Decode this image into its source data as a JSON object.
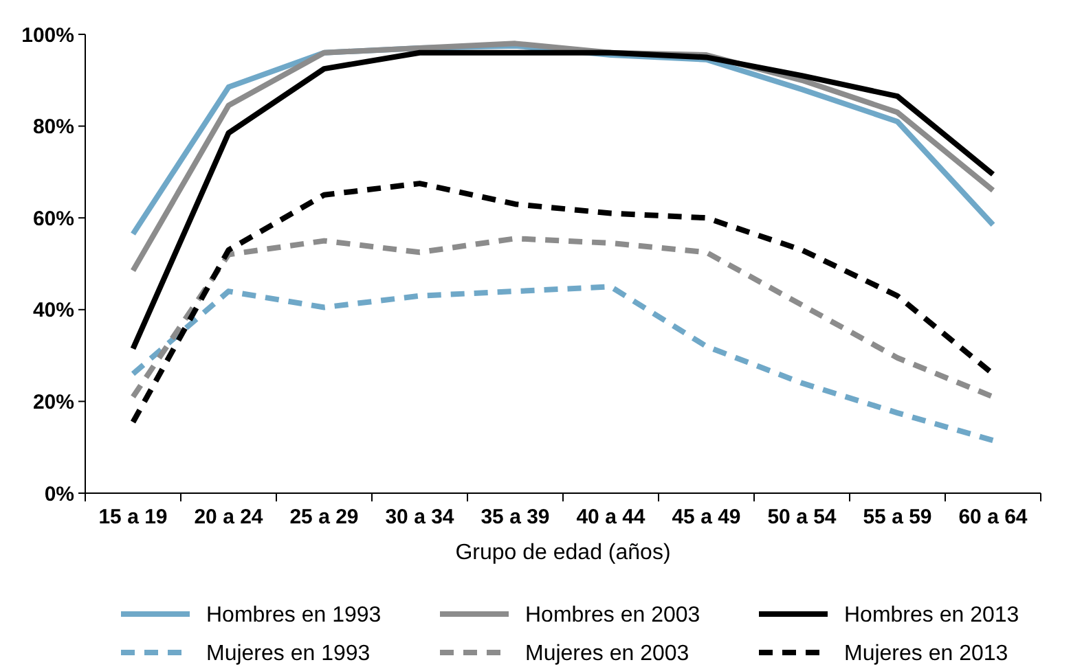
{
  "chart_data": {
    "type": "line",
    "xlabel": "Grupo de edad (años)",
    "categories": [
      "15 a 19",
      "20 a 24",
      "25 a 29",
      "30 a 34",
      "35 a 39",
      "40 a 44",
      "45 a 49",
      "50 a 54",
      "55 a 59",
      "60 a 64"
    ],
    "ylim": [
      0,
      100
    ],
    "yticks": [
      {
        "value": 0,
        "label": "0%"
      },
      {
        "value": 20,
        "label": "20%"
      },
      {
        "value": 40,
        "label": "40%"
      },
      {
        "value": 60,
        "label": "60%"
      },
      {
        "value": 80,
        "label": "80%"
      },
      {
        "value": 100,
        "label": "100%"
      }
    ],
    "legend": "bottom",
    "series": [
      {
        "name": "Hombres en 1993",
        "color": "#6fa8c8",
        "line_style": "solid",
        "values": [
          56.5,
          88.5,
          96,
          97,
          97.5,
          95.5,
          94.5,
          88,
          81,
          58.5
        ]
      },
      {
        "name": "Hombres en 2003",
        "color": "#8c8c8c",
        "line_style": "solid",
        "values": [
          48.5,
          84.5,
          96,
          97,
          98,
          96,
          95.5,
          90,
          83,
          66
        ]
      },
      {
        "name": "Hombres en 2013",
        "color": "#000000",
        "line_style": "solid",
        "values": [
          31.5,
          78.5,
          92.5,
          96,
          96,
          96,
          95,
          91,
          86.5,
          69.5
        ]
      },
      {
        "name": "Mujeres en 1993",
        "color": "#6fa8c8",
        "line_style": "dashed",
        "values": [
          26,
          44,
          40.5,
          43,
          44,
          45,
          32,
          24,
          17.5,
          11.5
        ]
      },
      {
        "name": "Mujeres en 2003",
        "color": "#8c8c8c",
        "line_style": "dashed",
        "values": [
          21,
          52,
          55,
          52.5,
          55.5,
          54.5,
          52.5,
          41,
          29.5,
          21
        ]
      },
      {
        "name": "Mujeres en 2013",
        "color": "#000000",
        "line_style": "dashed",
        "values": [
          15.5,
          53,
          65,
          67.5,
          63,
          61,
          60,
          53,
          43,
          26
        ]
      }
    ]
  }
}
